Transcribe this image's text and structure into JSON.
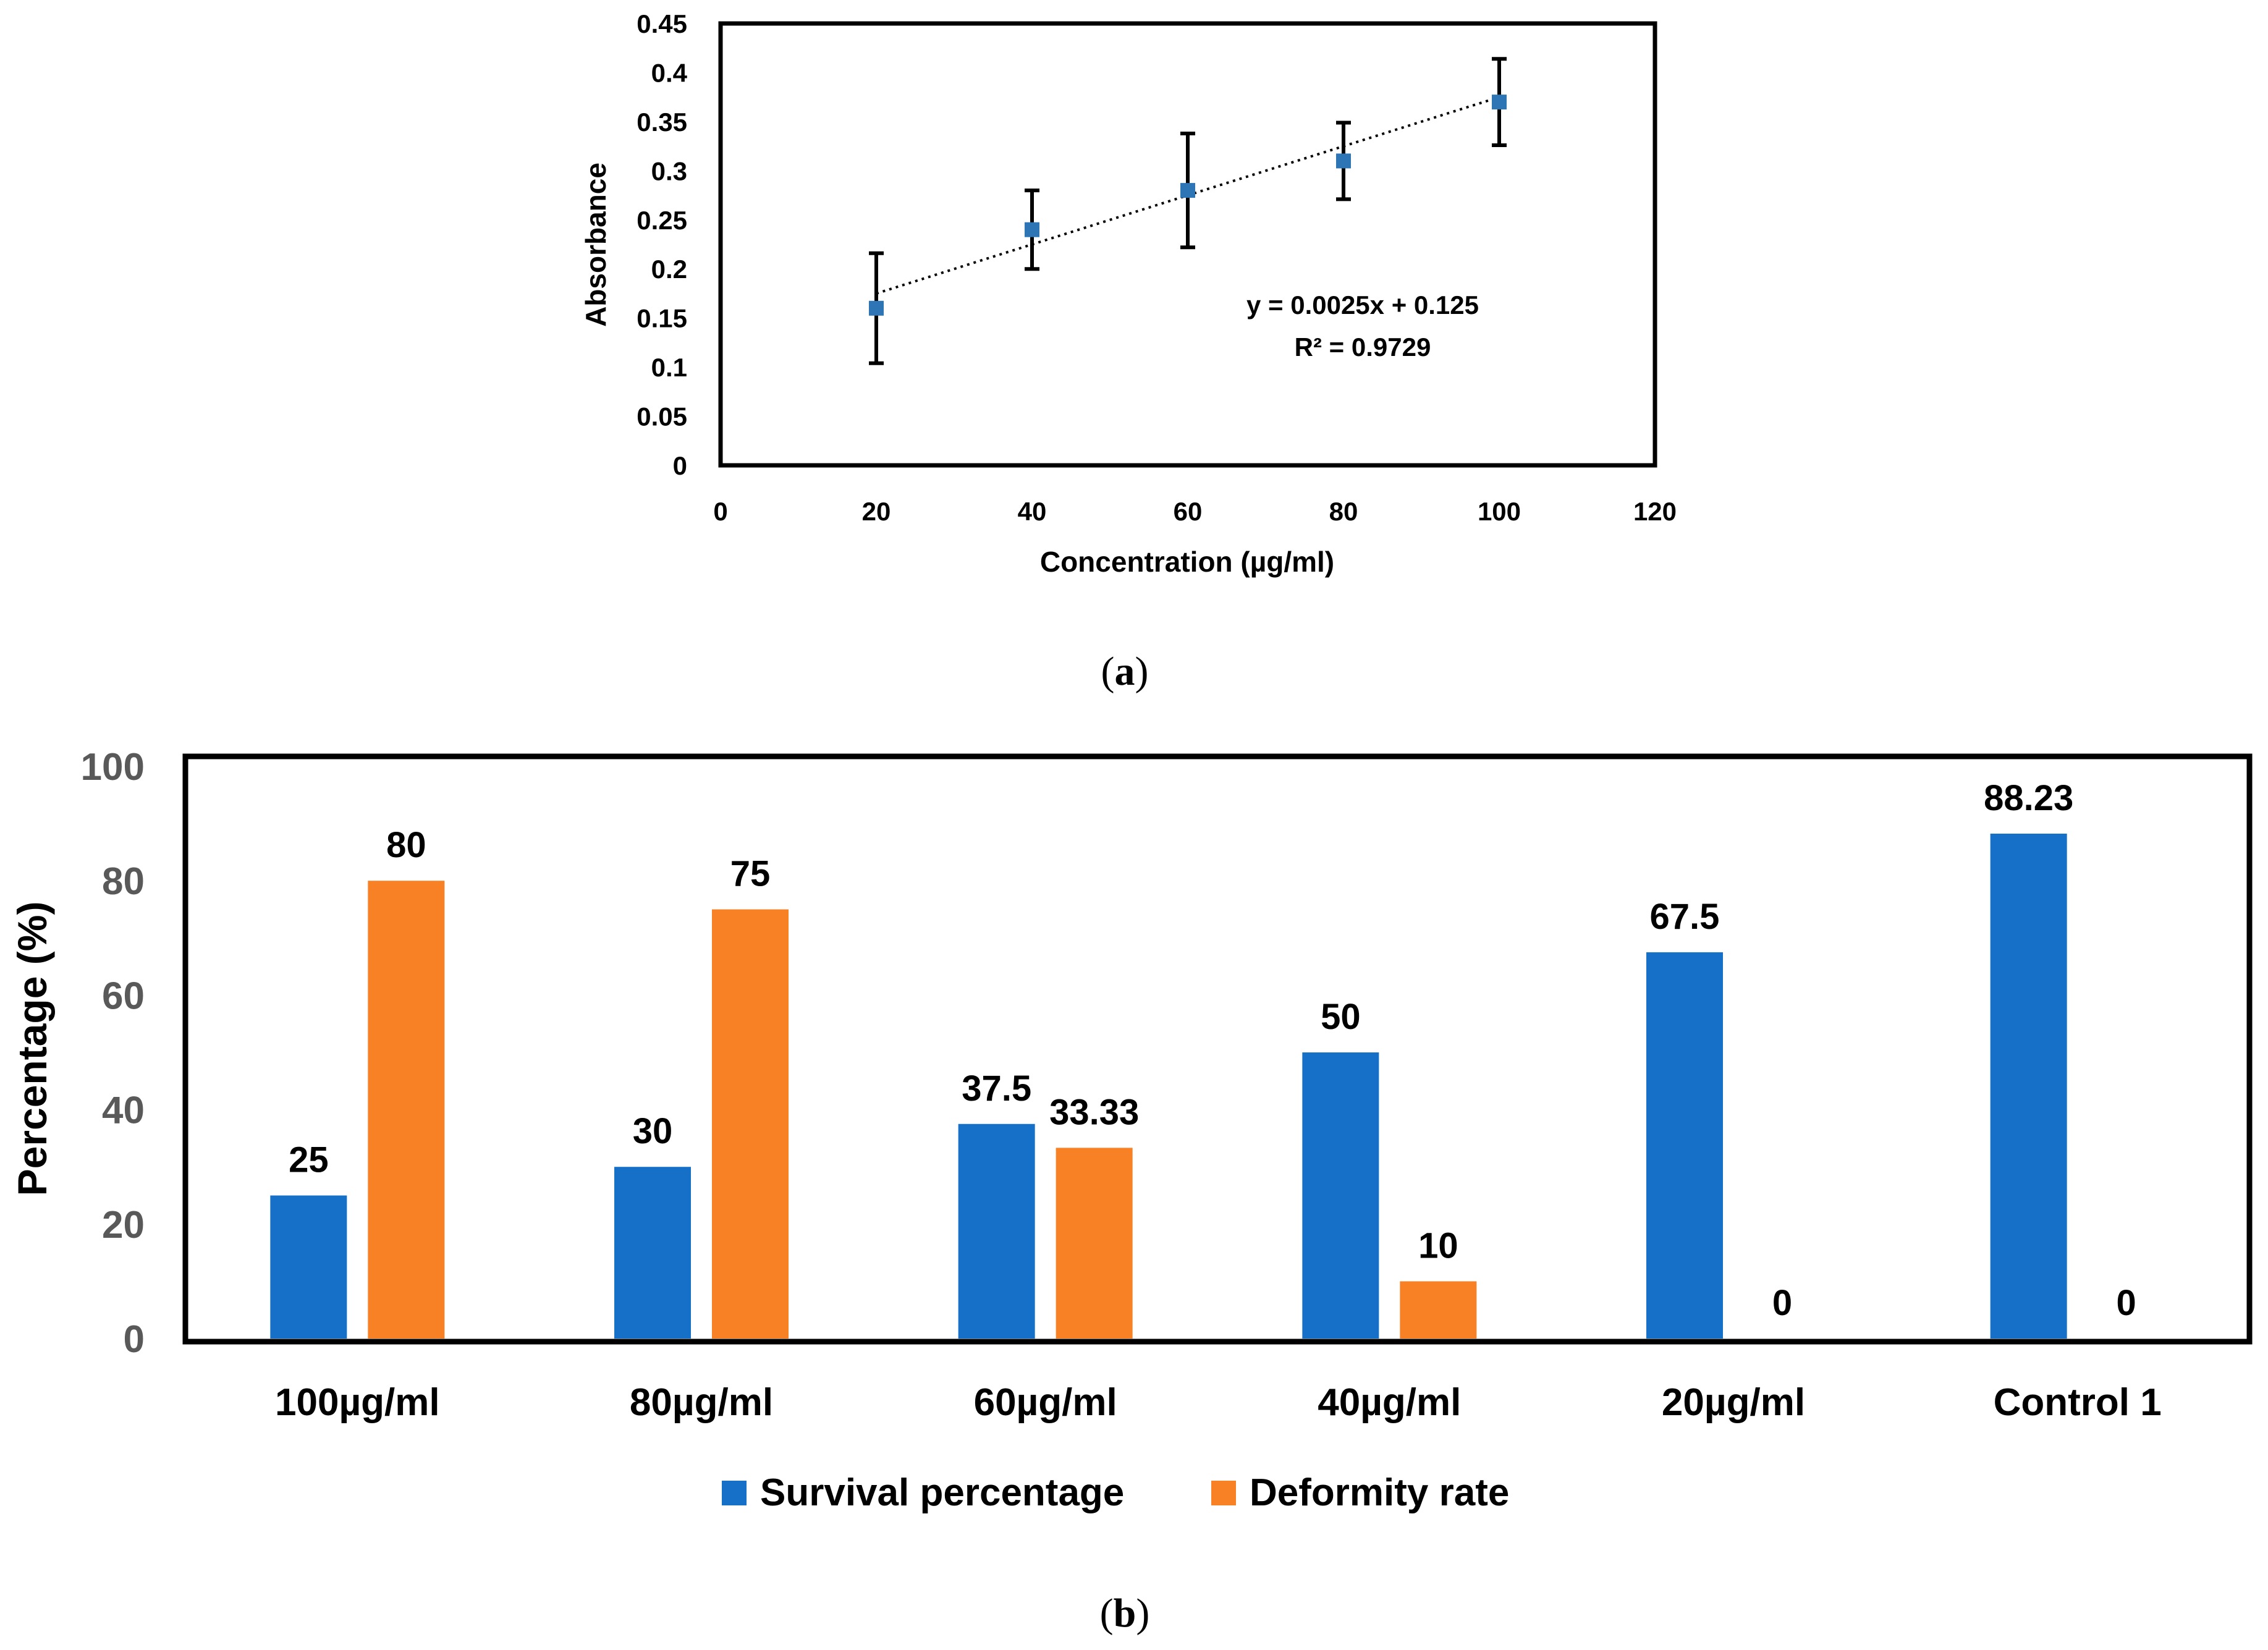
{
  "chart_data": [
    {
      "type": "scatter",
      "panel_label": "a",
      "title": "",
      "xlabel": "Concentration (µg/ml)",
      "ylabel": "Absorbance",
      "xlim": [
        0,
        120
      ],
      "ylim": [
        0,
        0.45
      ],
      "xticks": [
        "0",
        "20",
        "40",
        "60",
        "80",
        "100",
        "120"
      ],
      "yticks": [
        "0",
        "0.05",
        "0.1",
        "0.15",
        "0.2",
        "0.25",
        "0.3",
        "0.35",
        "0.4",
        "0.45"
      ],
      "x": [
        20,
        40,
        60,
        80,
        100
      ],
      "y": [
        0.16,
        0.24,
        0.28,
        0.31,
        0.37
      ],
      "error": [
        0.056,
        0.04,
        0.058,
        0.039,
        0.044
      ],
      "marker_color": "#2E75B6",
      "trendline": {
        "slope": 0.0025,
        "intercept": 0.125,
        "style": "dotted"
      },
      "annotations": [
        "y = 0.0025x + 0.125",
        "R² = 0.9729"
      ],
      "grid": false
    },
    {
      "type": "bar",
      "panel_label": "b",
      "title": "",
      "xlabel": "",
      "ylabel": "Percentage (%)",
      "ylim": [
        0,
        100
      ],
      "yticks": [
        "0",
        "20",
        "40",
        "60",
        "80",
        "100"
      ],
      "categories": [
        "100µg/ml",
        "80µg/ml",
        "60µg/ml",
        "40µg/ml",
        "20µg/ml",
        "Control 1"
      ],
      "series": [
        {
          "name": "Survival percentage",
          "color": "#1670C8",
          "values": [
            25,
            30,
            37.5,
            50,
            67.5,
            88.23
          ],
          "labels": [
            "25",
            "30",
            "37.5",
            "50",
            "67.5",
            "88.23"
          ]
        },
        {
          "name": "Deformity rate",
          "color": "#F98125",
          "values": [
            80,
            75,
            33.33,
            10,
            0,
            0
          ],
          "labels": [
            "80",
            "75",
            "33.33",
            "10",
            "0",
            "0"
          ]
        }
      ],
      "legend_position": "bottom",
      "grid": false
    }
  ]
}
